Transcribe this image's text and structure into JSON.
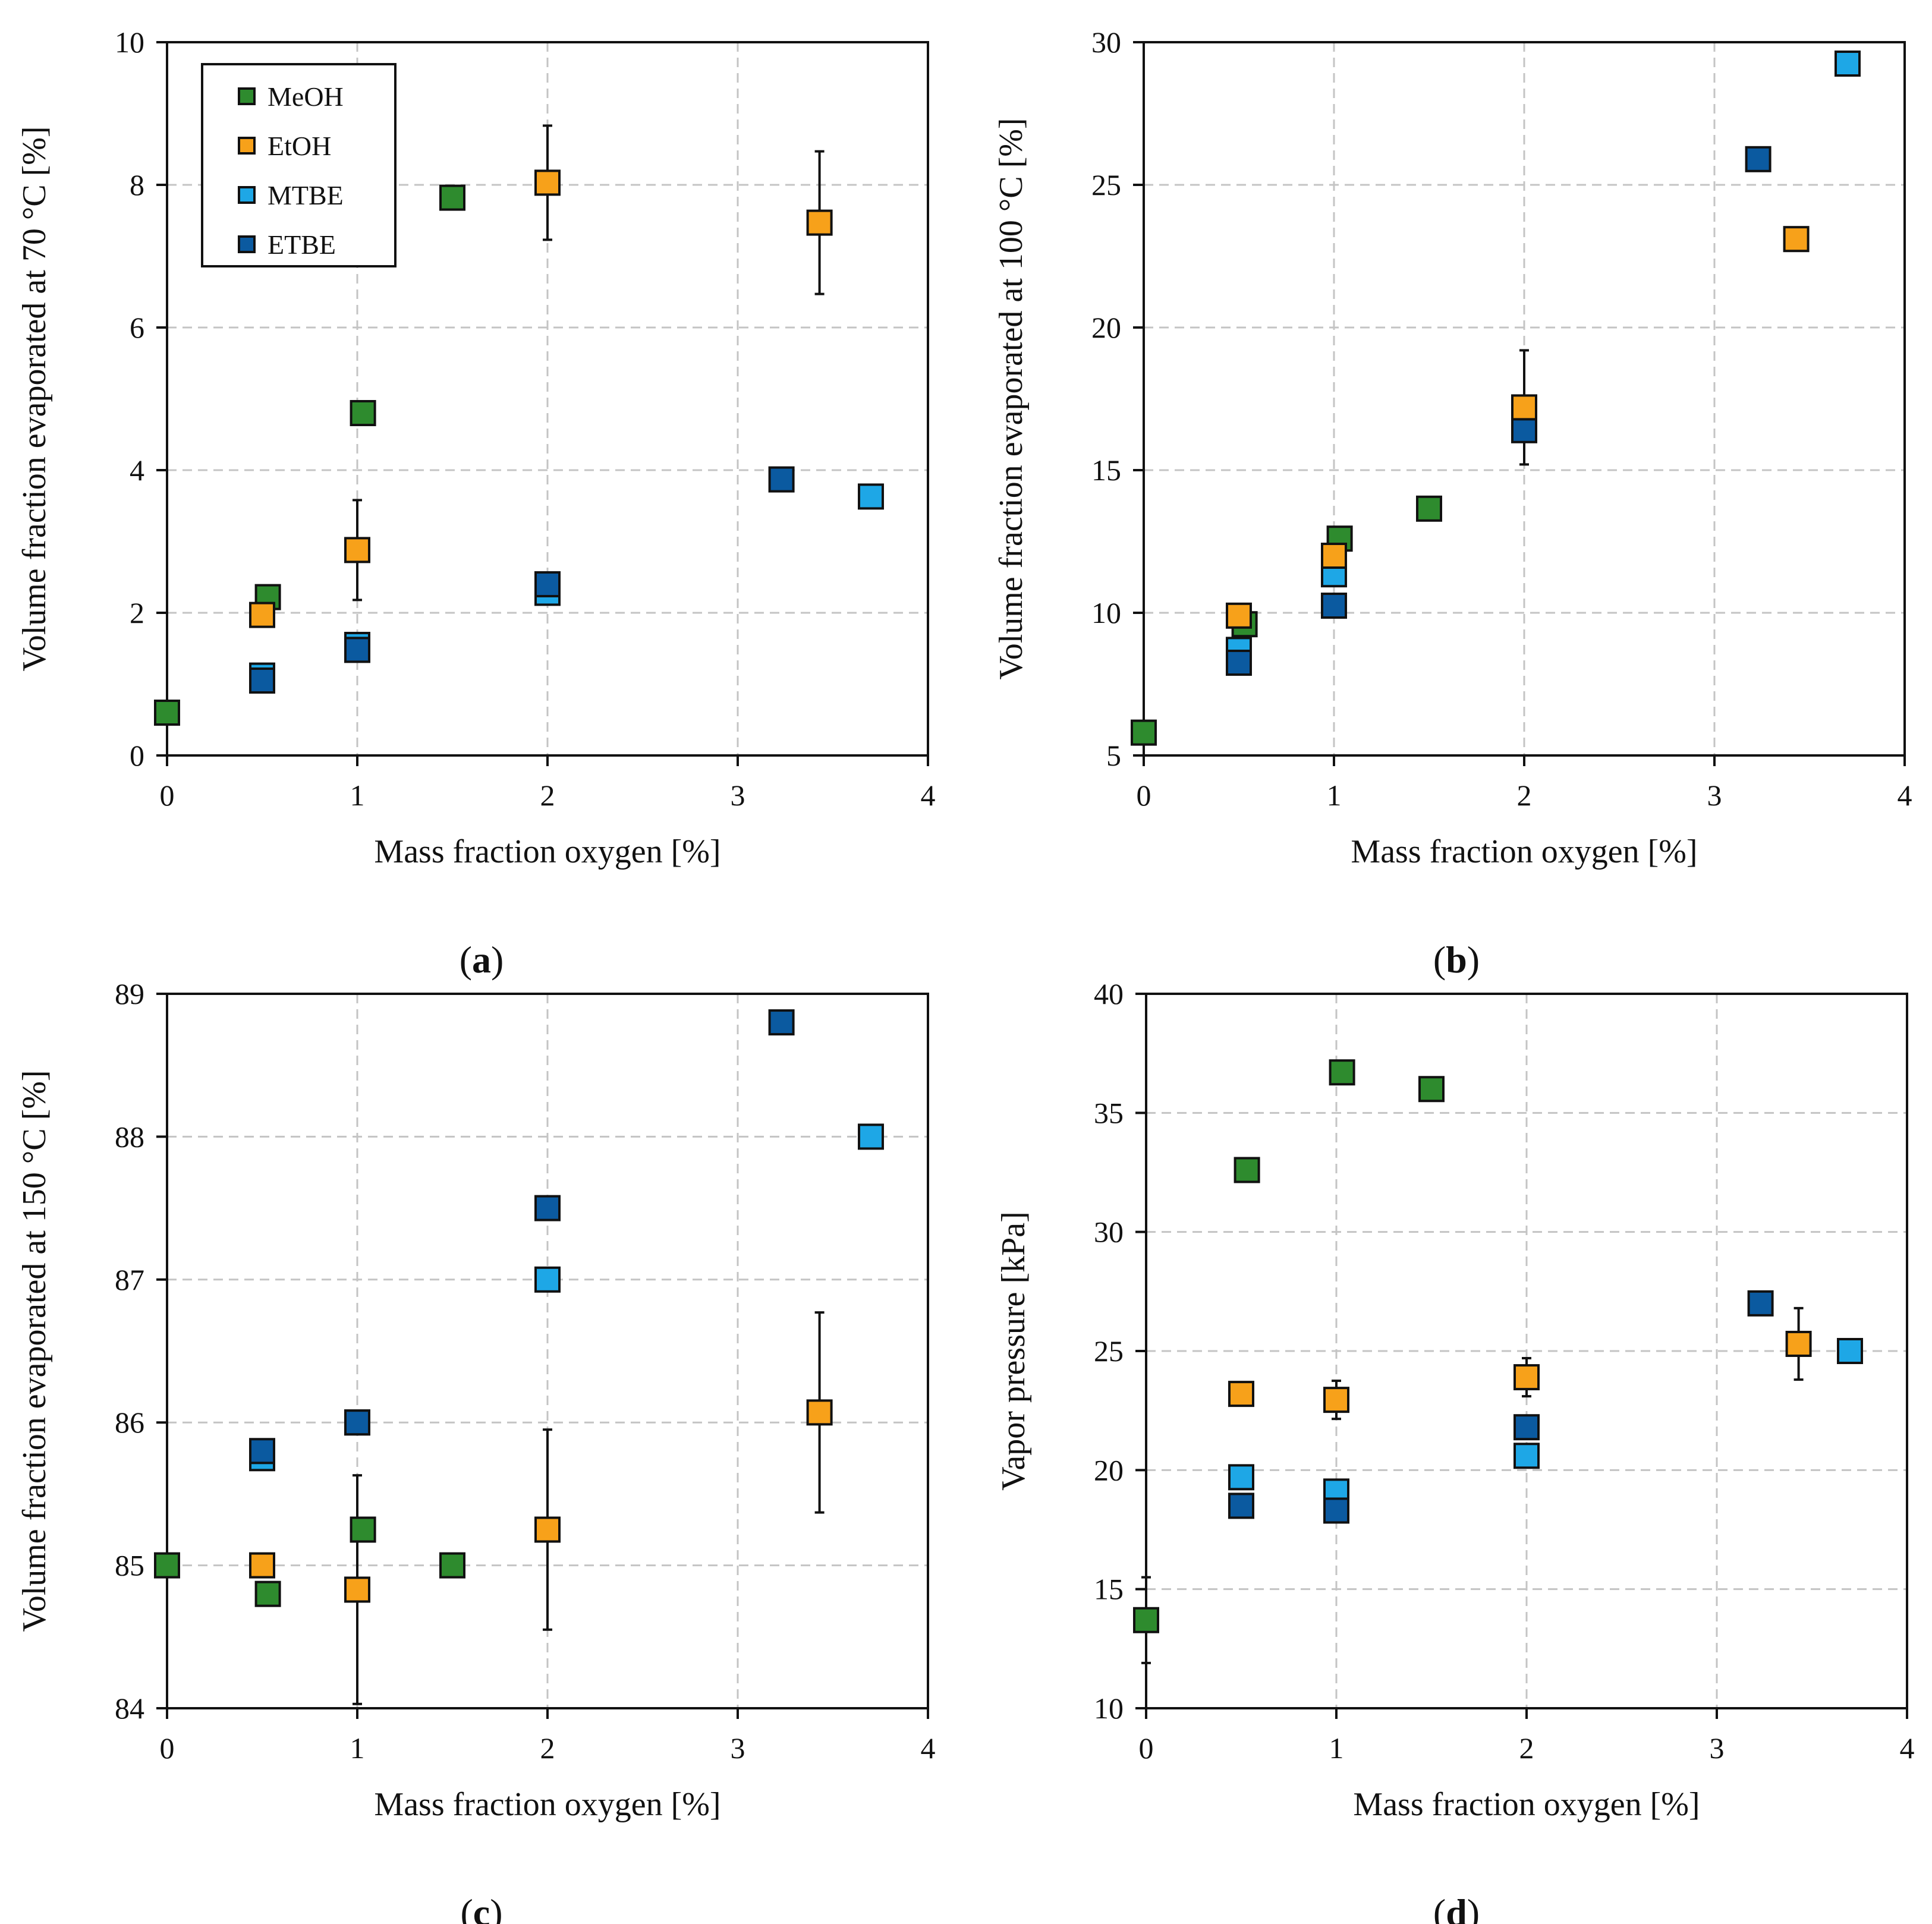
{
  "colors": {
    "MeOH": "#2e8b2e",
    "EtOH": "#f7a11a",
    "MTBE": "#1ea7e6",
    "ETBE": "#0b5aa0"
  },
  "legend": [
    "MeOH",
    "EtOH",
    "MTBE",
    "ETBE"
  ],
  "chart_data": [
    {
      "id": "a",
      "type": "scatter",
      "caption_letter": "a",
      "xlabel": "Mass fraction oxygen [%]",
      "ylabel": "Volume fraction evaporated at 70 °C [%]",
      "xlim": [
        0,
        4
      ],
      "ylim": [
        0,
        10
      ],
      "xticks": [
        0,
        1,
        2,
        3,
        4
      ],
      "yticks": [
        0,
        2,
        4,
        6,
        8,
        10
      ],
      "legend": true,
      "series": [
        {
          "name": "MeOH",
          "points": [
            {
              "x": 0,
              "y": 0.6
            },
            {
              "x": 0.53,
              "y": 2.22
            },
            {
              "x": 1.03,
              "y": 4.8
            },
            {
              "x": 1.5,
              "y": 7.82
            }
          ]
        },
        {
          "name": "EtOH",
          "points": [
            {
              "x": 0.5,
              "y": 1.97
            },
            {
              "x": 1.0,
              "y": 2.88,
              "err": 0.7
            },
            {
              "x": 2.0,
              "y": 8.03,
              "err": 0.8
            },
            {
              "x": 3.43,
              "y": 7.47,
              "err": 1.0
            }
          ]
        },
        {
          "name": "MTBE",
          "points": [
            {
              "x": 0.5,
              "y": 1.12
            },
            {
              "x": 1.0,
              "y": 1.55
            },
            {
              "x": 2.0,
              "y": 2.28
            },
            {
              "x": 3.7,
              "y": 3.63
            }
          ]
        },
        {
          "name": "ETBE",
          "points": [
            {
              "x": 0.5,
              "y": 1.05
            },
            {
              "x": 1.0,
              "y": 1.48
            },
            {
              "x": 2.0,
              "y": 2.4
            },
            {
              "x": 3.23,
              "y": 3.87
            }
          ]
        }
      ]
    },
    {
      "id": "b",
      "type": "scatter",
      "caption_letter": "b",
      "xlabel": "Mass fraction oxygen [%]",
      "ylabel": "Volume fraction evaporated at 100 °C [%]",
      "xlim": [
        0,
        4
      ],
      "ylim": [
        5,
        30
      ],
      "xticks": [
        0,
        1,
        2,
        3,
        4
      ],
      "yticks": [
        5,
        10,
        15,
        20,
        25,
        30
      ],
      "legend": false,
      "series": [
        {
          "name": "MeOH",
          "points": [
            {
              "x": 0,
              "y": 5.8
            },
            {
              "x": 0.53,
              "y": 9.6
            },
            {
              "x": 1.03,
              "y": 12.6
            },
            {
              "x": 1.5,
              "y": 13.65
            }
          ]
        },
        {
          "name": "EtOH",
          "points": [
            {
              "x": 0.5,
              "y": 9.9
            },
            {
              "x": 1.0,
              "y": 12.0
            },
            {
              "x": 2.0,
              "y": 17.2,
              "err": 2.0
            },
            {
              "x": 3.43,
              "y": 23.1
            }
          ]
        },
        {
          "name": "MTBE",
          "points": [
            {
              "x": 0.5,
              "y": 8.7
            },
            {
              "x": 1.0,
              "y": 11.35
            },
            {
              "x": 2.0,
              "y": 16.9
            },
            {
              "x": 3.7,
              "y": 29.25
            }
          ]
        },
        {
          "name": "ETBE",
          "points": [
            {
              "x": 0.5,
              "y": 8.25
            },
            {
              "x": 1.0,
              "y": 10.25
            },
            {
              "x": 2.0,
              "y": 16.4
            },
            {
              "x": 3.23,
              "y": 25.9
            }
          ]
        }
      ]
    },
    {
      "id": "c",
      "type": "scatter",
      "caption_letter": "c",
      "xlabel": "Mass fraction oxygen [%]",
      "ylabel": "Volume fraction evaporated at 150 °C [%]",
      "xlim": [
        0,
        4
      ],
      "ylim": [
        84,
        89
      ],
      "xticks": [
        0,
        1,
        2,
        3,
        4
      ],
      "yticks": [
        84,
        85,
        86,
        87,
        88,
        89
      ],
      "legend": false,
      "series": [
        {
          "name": "MeOH",
          "points": [
            {
              "x": 0,
              "y": 85.0
            },
            {
              "x": 0.53,
              "y": 84.8
            },
            {
              "x": 1.03,
              "y": 85.25
            },
            {
              "x": 1.5,
              "y": 85.0
            }
          ]
        },
        {
          "name": "EtOH",
          "points": [
            {
              "x": 0.5,
              "y": 85.0
            },
            {
              "x": 1.0,
              "y": 84.83,
              "err": 0.8
            },
            {
              "x": 2.0,
              "y": 85.25,
              "err": 0.7
            },
            {
              "x": 3.43,
              "y": 86.07,
              "err": 0.7
            }
          ]
        },
        {
          "name": "MTBE",
          "points": [
            {
              "x": 0.5,
              "y": 85.75
            },
            {
              "x": 1.0,
              "y": 86.0
            },
            {
              "x": 2.0,
              "y": 87.0
            },
            {
              "x": 3.7,
              "y": 88.0
            }
          ]
        },
        {
          "name": "ETBE",
          "points": [
            {
              "x": 0.5,
              "y": 85.8
            },
            {
              "x": 1.0,
              "y": 86.0
            },
            {
              "x": 2.0,
              "y": 87.5
            },
            {
              "x": 3.23,
              "y": 88.8
            }
          ]
        }
      ]
    },
    {
      "id": "d",
      "type": "scatter",
      "caption_letter": "d",
      "xlabel": "Mass fraction oxygen [%]",
      "ylabel": "Vapor pressure [kPa]",
      "xlim": [
        0,
        4
      ],
      "ylim": [
        10,
        40
      ],
      "xticks": [
        0,
        1,
        2,
        3,
        4
      ],
      "yticks": [
        10,
        15,
        20,
        25,
        30,
        35,
        40
      ],
      "legend": false,
      "series": [
        {
          "name": "MeOH",
          "points": [
            {
              "x": 0,
              "y": 13.7,
              "err": 1.8
            },
            {
              "x": 0.53,
              "y": 32.6
            },
            {
              "x": 1.03,
              "y": 36.7
            },
            {
              "x": 1.5,
              "y": 36.0
            }
          ]
        },
        {
          "name": "EtOH",
          "points": [
            {
              "x": 0.5,
              "y": 23.2
            },
            {
              "x": 1.0,
              "y": 22.95,
              "err": 0.8
            },
            {
              "x": 2.0,
              "y": 23.9,
              "err": 0.8
            },
            {
              "x": 3.43,
              "y": 25.3,
              "err": 1.5
            }
          ]
        },
        {
          "name": "MTBE",
          "points": [
            {
              "x": 0.5,
              "y": 19.7
            },
            {
              "x": 1.0,
              "y": 19.1
            },
            {
              "x": 2.0,
              "y": 20.6
            },
            {
              "x": 3.7,
              "y": 25.0
            }
          ]
        },
        {
          "name": "ETBE",
          "points": [
            {
              "x": 0.5,
              "y": 18.5
            },
            {
              "x": 1.0,
              "y": 18.3
            },
            {
              "x": 2.0,
              "y": 21.8
            },
            {
              "x": 3.23,
              "y": 27.0
            }
          ]
        }
      ]
    }
  ]
}
